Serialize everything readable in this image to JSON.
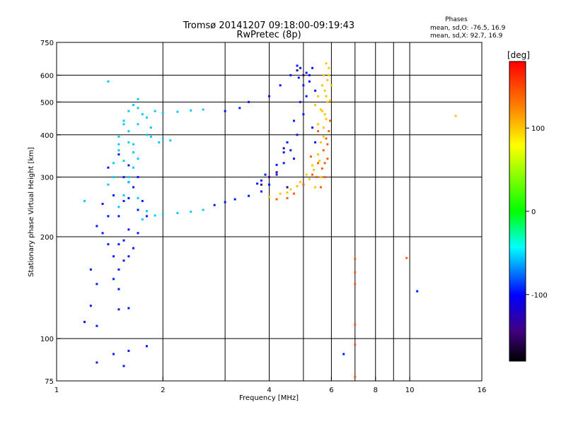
{
  "chart_data": {
    "type": "scatter",
    "title": "Tromsø 20141207 09:18:00-09:19:43",
    "subtitle": "RwPretec (8p)",
    "xlabel": "Frequency [MHz]",
    "ylabel": "Stationary phase Virtual Height [km]",
    "x_scale": "log",
    "y_scale": "log",
    "xlim": [
      1,
      16
    ],
    "ylim": [
      75,
      750
    ],
    "x_ticks": [
      1,
      2,
      4,
      6,
      8,
      10,
      16
    ],
    "x_grid": [
      2,
      3,
      4,
      5,
      6,
      7,
      8,
      9,
      10
    ],
    "y_ticks": [
      75,
      100,
      200,
      300,
      400,
      500,
      600,
      750
    ],
    "y_grid": [
      100,
      200,
      300,
      400,
      500,
      600
    ],
    "grid": true,
    "stats": {
      "heading": "Phases",
      "line_o": "mean, sd,O: -76.5, 16.9",
      "line_x": "mean, sd,X:  92.7, 16.9"
    },
    "colorbar": {
      "unit": "[deg]",
      "min": -180,
      "max": 180,
      "ticks": [
        100,
        0,
        -100
      ],
      "colors": [
        "#ff0000",
        "#ff8000",
        "#ffff00",
        "#00ff00",
        "#00ffff",
        "#0000ff",
        "#400080",
        "#000000"
      ]
    },
    "series": [
      {
        "phase": -95,
        "points": [
          [
            1.45,
            175
          ],
          [
            1.55,
            195
          ],
          [
            1.5,
            230
          ],
          [
            1.6,
            260
          ],
          [
            1.55,
            300
          ],
          [
            1.45,
            150
          ],
          [
            1.5,
            140
          ],
          [
            1.6,
            210
          ],
          [
            1.7,
            240
          ],
          [
            1.65,
            280
          ],
          [
            1.35,
            250
          ],
          [
            1.4,
            320
          ],
          [
            2.8,
            248
          ],
          [
            3.0,
            253
          ],
          [
            3.2,
            258
          ],
          [
            3.5,
            264
          ],
          [
            3.8,
            272
          ],
          [
            4.0,
            285
          ],
          [
            4.2,
            305
          ],
          [
            4.4,
            330
          ],
          [
            4.6,
            360
          ],
          [
            4.8,
            400
          ],
          [
            5.0,
            460
          ],
          [
            5.1,
            520
          ],
          [
            5.2,
            600
          ],
          [
            5.3,
            630
          ],
          [
            3.5,
            500
          ],
          [
            4.0,
            520
          ],
          [
            4.3,
            560
          ],
          [
            4.6,
            600
          ],
          [
            4.8,
            640
          ],
          [
            5.3,
            420
          ],
          [
            5.4,
            380
          ],
          [
            3.0,
            470
          ],
          [
            3.3,
            480
          ],
          [
            1.2,
            112
          ],
          [
            1.3,
            109
          ],
          [
            1.25,
            125
          ],
          [
            1.45,
            90
          ],
          [
            1.55,
            83
          ],
          [
            1.6,
            92
          ],
          [
            1.3,
            85
          ],
          [
            1.5,
            122
          ],
          [
            1.6,
            123
          ],
          [
            1.8,
            95
          ],
          [
            4.7,
            340
          ],
          [
            3.7,
            287
          ],
          [
            3.8,
            293
          ],
          [
            3.9,
            305
          ],
          [
            4.2,
            326
          ],
          [
            4.4,
            355
          ],
          [
            4.5,
            380
          ],
          [
            4.7,
            440
          ],
          [
            4.9,
            500
          ],
          [
            5.0,
            560
          ],
          [
            5.1,
            610
          ],
          [
            4.85,
            590
          ],
          [
            4.9,
            630
          ],
          [
            5.2,
            575
          ],
          [
            5.4,
            540
          ],
          [
            1.3,
            215
          ],
          [
            1.4,
            190
          ],
          [
            1.5,
            160
          ],
          [
            1.6,
            175
          ],
          [
            1.7,
            205
          ],
          [
            1.45,
            265
          ],
          [
            1.6,
            325
          ],
          [
            1.5,
            350
          ],
          [
            1.7,
            300
          ],
          [
            1.4,
            230
          ],
          [
            1.35,
            205
          ],
          [
            1.25,
            160
          ],
          [
            1.3,
            145
          ],
          [
            1.5,
            190
          ],
          [
            1.55,
            255
          ],
          [
            1.6,
            290
          ],
          [
            1.75,
            255
          ],
          [
            1.65,
            185
          ],
          [
            1.55,
            170
          ],
          [
            1.8,
            230
          ],
          [
            6.5,
            90
          ],
          [
            10.5,
            138
          ]
        ]
      },
      {
        "phase": -55,
        "points": [
          [
            1.55,
            440
          ],
          [
            1.6,
            470
          ],
          [
            1.7,
            430
          ],
          [
            1.75,
            460
          ],
          [
            1.6,
            410
          ],
          [
            1.65,
            490
          ],
          [
            1.8,
            450
          ],
          [
            1.85,
            420
          ],
          [
            1.5,
            395
          ],
          [
            1.7,
            480
          ],
          [
            1.9,
            470
          ],
          [
            2.0,
            465
          ],
          [
            2.2,
            468
          ],
          [
            2.4,
            472
          ],
          [
            2.6,
            475
          ],
          [
            1.8,
            400
          ],
          [
            2.0,
            390
          ],
          [
            1.7,
            510
          ],
          [
            1.5,
            245
          ],
          [
            1.55,
            265
          ],
          [
            1.6,
            290
          ],
          [
            1.65,
            320
          ],
          [
            1.7,
            260
          ],
          [
            1.8,
            238
          ],
          [
            2.0,
            233
          ],
          [
            2.2,
            235
          ],
          [
            2.4,
            237
          ],
          [
            2.6,
            240
          ],
          [
            1.9,
            231
          ],
          [
            1.75,
            225
          ],
          [
            1.55,
            335
          ],
          [
            1.65,
            355
          ],
          [
            1.6,
            380
          ],
          [
            1.5,
            360
          ],
          [
            1.45,
            300
          ],
          [
            1.7,
            340
          ],
          [
            1.2,
            255
          ],
          [
            1.4,
            285
          ],
          [
            1.4,
            575
          ],
          [
            1.55,
            430
          ],
          [
            1.65,
            375
          ],
          [
            1.85,
            395
          ],
          [
            1.95,
            380
          ],
          [
            2.1,
            385
          ],
          [
            1.45,
            330
          ],
          [
            1.5,
            375
          ],
          [
            1.6,
            300
          ]
        ]
      },
      {
        "phase": 100,
        "points": [
          [
            4.0,
            262
          ],
          [
            4.3,
            268
          ],
          [
            4.6,
            276
          ],
          [
            4.9,
            290
          ],
          [
            5.1,
            305
          ],
          [
            5.3,
            325
          ],
          [
            5.5,
            350
          ],
          [
            5.6,
            380
          ],
          [
            5.7,
            420
          ],
          [
            5.75,
            460
          ],
          [
            5.8,
            520
          ],
          [
            5.85,
            580
          ],
          [
            5.9,
            630
          ],
          [
            5.8,
            650
          ],
          [
            5.6,
            475
          ],
          [
            5.5,
            430
          ],
          [
            5.65,
            560
          ],
          [
            5.7,
            600
          ],
          [
            5.4,
            490
          ],
          [
            6.0,
            560
          ],
          [
            4.5,
            270
          ],
          [
            4.8,
            282
          ],
          [
            5.2,
            296
          ],
          [
            5.35,
            315
          ],
          [
            5.55,
            335
          ],
          [
            5.7,
            395
          ],
          [
            5.8,
            445
          ],
          [
            5.85,
            500
          ],
          [
            5.75,
            540
          ],
          [
            5.9,
            600
          ],
          [
            5.6,
            300
          ],
          [
            5.4,
            280
          ],
          [
            5.95,
            505
          ],
          [
            13.5,
            455
          ],
          [
            5.5,
            520
          ],
          [
            5.65,
            470
          ]
        ]
      },
      {
        "phase": 140,
        "points": [
          [
            4.5,
            260
          ],
          [
            4.7,
            268
          ],
          [
            5.0,
            285
          ],
          [
            5.3,
            305
          ],
          [
            5.5,
            330
          ],
          [
            5.7,
            360
          ],
          [
            5.8,
            390
          ],
          [
            5.9,
            410
          ],
          [
            5.95,
            440
          ],
          [
            4.2,
            258
          ],
          [
            5.6,
            280
          ],
          [
            5.75,
            300
          ],
          [
            7.0,
            172
          ],
          [
            7.0,
            157
          ],
          [
            7.0,
            145
          ],
          [
            7.0,
            110
          ],
          [
            7.0,
            96
          ],
          [
            9.8,
            173
          ],
          [
            7.0,
            77
          ],
          [
            5.85,
            340
          ],
          [
            5.5,
            410
          ],
          [
            5.25,
            345
          ],
          [
            5.85,
            375
          ],
          [
            5.45,
            300
          ],
          [
            5.75,
            330
          ],
          [
            5.65,
            318
          ]
        ]
      },
      {
        "phase": -140,
        "points": [
          [
            4.0,
            300
          ],
          [
            4.2,
            310
          ],
          [
            4.4,
            365
          ],
          [
            3.8,
            285
          ],
          [
            4.5,
            280
          ],
          [
            4.8,
            620
          ],
          [
            5.0,
            600
          ]
        ]
      }
    ]
  }
}
